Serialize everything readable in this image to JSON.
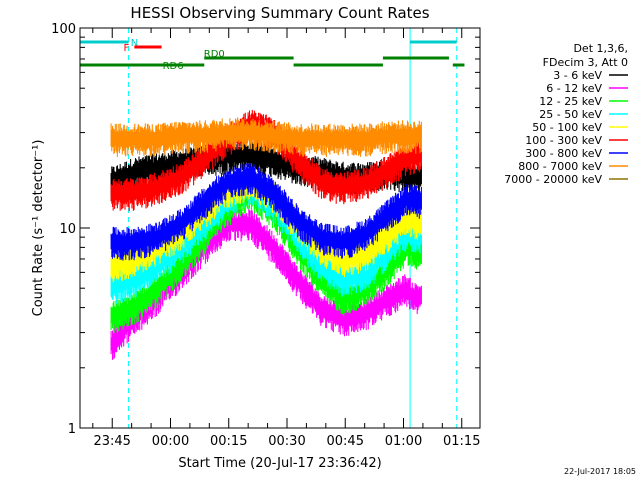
{
  "chart_data": {
    "type": "line",
    "title": "HESSI Observing Summary Count Rates",
    "xlabel": "Start Time (20-Jul-17 23:36:42)",
    "ylabel": "Count Rate (s⁻¹ detector⁻¹)",
    "yscale": "log",
    "ylim": [
      1,
      100
    ],
    "xlim_minutes": [
      0,
      103
    ],
    "y_tick_labels": [
      "1",
      "10",
      "100"
    ],
    "x_ticks": [
      {
        "label": "23:45",
        "minute": 8.3
      },
      {
        "label": "00:00",
        "minute": 23.3
      },
      {
        "label": "00:15",
        "minute": 38.3
      },
      {
        "label": "00:30",
        "minute": 53.3
      },
      {
        "label": "00:45",
        "minute": 68.3
      },
      {
        "label": "01:00",
        "minute": 83.3
      },
      {
        "label": "01:15",
        "minute": 98.3
      }
    ],
    "legend": {
      "placement": "right",
      "header": [
        "Det 1,3,6,",
        "FDecim 3, Att 0"
      ],
      "entries": [
        {
          "label": "3 - 6 keV",
          "color": "#000000"
        },
        {
          "label": "6 - 12 keV",
          "color": "#ff00ff"
        },
        {
          "label": "12 - 25 keV",
          "color": "#00ff00"
        },
        {
          "label": "25 - 50 keV",
          "color": "#00ffff"
        },
        {
          "label": "50 - 100 keV",
          "color": "#ffff00"
        },
        {
          "label": "100 - 300 keV",
          "color": "#ff0000"
        },
        {
          "label": "300 - 800 keV",
          "color": "#0000ff"
        },
        {
          "label": "800 - 7000 keV",
          "color": "#ff8c00"
        },
        {
          "label": "7000 - 20000 keV",
          "color": "#8b7500"
        }
      ]
    },
    "flags": [
      {
        "label": "N",
        "color": "#00cccc",
        "segments": [
          [
            0,
            12.5
          ],
          [
            85,
            97
          ]
        ]
      },
      {
        "label": "F",
        "color": "#ff0000",
        "segments": [
          [
            14,
            21
          ]
        ]
      },
      {
        "label": "RD0",
        "color": "#008000",
        "segments": [
          [
            32,
            55
          ],
          [
            78,
            95
          ]
        ]
      },
      {
        "label": "RD6",
        "color": "#008000",
        "segments": [
          [
            0,
            32
          ],
          [
            55,
            78
          ],
          [
            96,
            99
          ]
        ]
      }
    ],
    "vertical_markers_minute": [
      {
        "minute": 0,
        "color": "#00ffff",
        "style": "solid"
      },
      {
        "minute": 12.5,
        "color": "#00ffff",
        "style": "dashed"
      },
      {
        "minute": 85,
        "color": "#00ffff",
        "style": "solid"
      },
      {
        "minute": 97,
        "color": "#00ffff",
        "style": "dashed"
      }
    ],
    "data_range_minute": [
      8,
      88
    ],
    "series": [
      {
        "name": "3 - 6 keV",
        "color": "#000000",
        "minutes": [
          8,
          14,
          20,
          26,
          32,
          38,
          44,
          50,
          56,
          62,
          68,
          74,
          80,
          86,
          88
        ],
        "values": [
          17,
          19,
          20,
          21,
          22,
          23,
          23,
          22,
          20,
          19,
          18,
          18,
          19,
          18,
          18
        ]
      },
      {
        "name": "6 - 12 keV",
        "color": "#ff00ff",
        "minutes": [
          8,
          10,
          14,
          20,
          26,
          32,
          38,
          44,
          50,
          56,
          62,
          68,
          74,
          80,
          84,
          86,
          88
        ],
        "values": [
          2.6,
          3.0,
          3.5,
          4.5,
          6.0,
          8.0,
          10.5,
          10.5,
          8.0,
          5.5,
          4.0,
          3.5,
          3.8,
          4.5,
          5.0,
          4.5,
          4.5
        ]
      },
      {
        "name": "12 - 25 keV",
        "color": "#00ff00",
        "minutes": [
          8,
          14,
          20,
          26,
          32,
          38,
          44,
          50,
          56,
          62,
          68,
          74,
          80,
          84,
          88
        ],
        "values": [
          3.6,
          4.0,
          5.0,
          6.5,
          9.0,
          12.5,
          15.0,
          12.0,
          8.0,
          5.5,
          4.5,
          5.0,
          6.5,
          8.0,
          7.5
        ]
      },
      {
        "name": "25 - 50 keV",
        "color": "#00ffff",
        "minutes": [
          8,
          14,
          20,
          26,
          32,
          38,
          44,
          50,
          56,
          62,
          68,
          74,
          80,
          84,
          88
        ],
        "values": [
          5.0,
          5.5,
          6.5,
          8.0,
          10.5,
          14.0,
          16.0,
          13.0,
          9.0,
          6.5,
          5.5,
          6.0,
          8.0,
          9.5,
          9.0
        ]
      },
      {
        "name": "50 - 100 keV",
        "color": "#ffff00",
        "minutes": [
          8,
          14,
          20,
          26,
          32,
          38,
          44,
          50,
          56,
          62,
          68,
          74,
          80,
          84,
          88
        ],
        "values": [
          6.5,
          7.0,
          8.0,
          9.5,
          12.0,
          15.5,
          17.0,
          14.5,
          10.5,
          8.0,
          7.0,
          7.5,
          9.5,
          11.0,
          10.5
        ]
      },
      {
        "name": "100 - 300 keV",
        "color": "#ff0000",
        "minutes": [
          8,
          14,
          20,
          26,
          32,
          38,
          44,
          50,
          56,
          62,
          68,
          74,
          80,
          86,
          88
        ],
        "values": [
          15,
          15,
          16,
          18,
          22,
          28,
          33,
          30,
          22,
          17,
          16,
          17,
          20,
          23,
          23
        ]
      },
      {
        "name": "300 - 800 keV",
        "color": "#0000ff",
        "minutes": [
          8,
          14,
          20,
          26,
          32,
          38,
          44,
          50,
          56,
          62,
          68,
          74,
          80,
          84,
          88
        ],
        "values": [
          8.5,
          8.5,
          9.0,
          10.5,
          13.5,
          17.0,
          18.0,
          15.0,
          11.0,
          9.0,
          8.5,
          9.5,
          12.0,
          14.0,
          13.5
        ]
      },
      {
        "name": "800 - 7000 keV",
        "color": "#ff8c00",
        "minutes": [
          8,
          14,
          20,
          26,
          32,
          38,
          44,
          50,
          56,
          62,
          68,
          74,
          80,
          86,
          88
        ],
        "values": [
          28,
          28,
          28,
          29,
          29,
          30,
          30,
          29,
          28,
          28,
          28,
          28,
          29,
          29,
          29
        ]
      }
    ]
  },
  "timestamp": "22-Jul-2017 18:05"
}
